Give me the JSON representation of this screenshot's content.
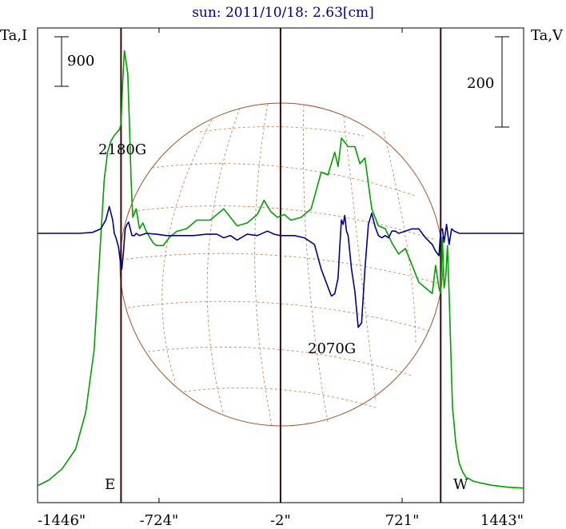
{
  "chart_data": {
    "type": "line",
    "title": "sun: 2011/10/18: 2.63[cm]",
    "left_axis_label": "Ta,I",
    "right_axis_label": "Ta,V",
    "x_tick_labels": [
      "-1446\"",
      "-724\"",
      "-2\"",
      "721\"",
      "1443\""
    ],
    "x_tick_values": [
      -1446,
      -724,
      -2,
      721,
      1443
    ],
    "xlim": [
      -1446,
      1443
    ],
    "scale_bars": [
      {
        "label": "900",
        "axis": "I"
      },
      {
        "label": "200",
        "axis": "V"
      }
    ],
    "limb_labels": [
      {
        "label": "E",
        "x": -950
      },
      {
        "label": "W",
        "x": 950
      }
    ],
    "annotations": [
      {
        "label": "2180G",
        "x": -1050
      },
      {
        "label": "2070G",
        "x": 450
      }
    ],
    "vertical_lines_x": [
      -950,
      -2,
      950
    ],
    "ylim_I": [
      0,
      1640
    ],
    "ylim_V": [
      -250,
      130
    ],
    "series": [
      {
        "key": "I",
        "color": "#00a000",
        "x": [
          -1446,
          -1380,
          -1300,
          -1220,
          -1160,
          -1110,
          -1080,
          -1060,
          -1050,
          -1040,
          -1030,
          -1010,
          -990,
          -975,
          -960,
          -950,
          -940,
          -930,
          -920,
          -910,
          -900,
          -890,
          -880,
          -860,
          -840,
          -820,
          -800,
          -780,
          -760,
          -740,
          -700,
          -660,
          -620,
          -560,
          -500,
          -420,
          -340,
          -260,
          -200,
          -140,
          -100,
          -60,
          -20,
          20,
          60,
          120,
          180,
          240,
          280,
          320,
          340,
          360,
          400,
          440,
          470,
          500,
          540,
          580,
          620,
          660,
          700,
          740,
          780,
          820,
          860,
          880,
          900,
          920,
          940,
          950,
          960,
          970,
          980,
          990,
          1000,
          1010,
          1020,
          1040,
          1060,
          1080,
          1100,
          1150,
          1250,
          1350,
          1443
        ],
        "values": [
          20,
          40,
          80,
          150,
          280,
          500,
          800,
          1000,
          1100,
          1150,
          1200,
          1240,
          1260,
          1270,
          1280,
          1300,
          1450,
          1560,
          1520,
          1480,
          1300,
          1100,
          970,
          1000,
          930,
          950,
          920,
          900,
          880,
          870,
          870,
          900,
          920,
          930,
          960,
          960,
          1000,
          940,
          950,
          980,
          1030,
          990,
          970,
          980,
          960,
          970,
          1000,
          1130,
          1120,
          1200,
          1150,
          1250,
          1220,
          1220,
          1160,
          1180,
          1000,
          940,
          930,
          880,
          840,
          860,
          800,
          740,
          720,
          710,
          700,
          800,
          720,
          700,
          900,
          720,
          760,
          870,
          700,
          500,
          300,
          170,
          100,
          70,
          50,
          35,
          22,
          15,
          12
        ]
      },
      {
        "key": "V",
        "color": "#000090",
        "x": [
          -1446,
          -1300,
          -1200,
          -1120,
          -1070,
          -1040,
          -1020,
          -1000,
          -990,
          -980,
          -965,
          -955,
          -945,
          -935,
          -925,
          -915,
          -905,
          -895,
          -885,
          -880,
          -870,
          -860,
          -840,
          -800,
          -740,
          -680,
          -600,
          -520,
          -440,
          -380,
          -340,
          -300,
          -260,
          -200,
          -140,
          -80,
          -40,
          -2,
          40,
          80,
          140,
          200,
          240,
          280,
          300,
          320,
          340,
          350,
          360,
          370,
          380,
          390,
          400,
          420,
          440,
          460,
          480,
          500,
          520,
          540,
          560,
          580,
          600,
          620,
          640,
          660,
          680,
          700,
          740,
          780,
          820,
          860,
          900,
          920,
          940,
          950,
          960,
          970,
          985,
          1000,
          1015,
          1030,
          1060,
          1100,
          1200,
          1300,
          1443
        ],
        "values": [
          0,
          0,
          0,
          2,
          10,
          30,
          60,
          30,
          0,
          -10,
          -30,
          -60,
          -80,
          -40,
          10,
          20,
          25,
          10,
          -5,
          -5,
          -5,
          0,
          -5,
          0,
          -2,
          -5,
          -5,
          -5,
          -2,
          -2,
          -10,
          -5,
          -15,
          -2,
          -5,
          5,
          -2,
          -5,
          -5,
          -5,
          -10,
          -25,
          -80,
          -120,
          -140,
          -135,
          -100,
          -30,
          30,
          20,
          40,
          5,
          -5,
          -80,
          -130,
          -210,
          -200,
          -80,
          20,
          45,
          15,
          -5,
          -10,
          -5,
          -10,
          5,
          5,
          0,
          5,
          10,
          10,
          -10,
          -25,
          -40,
          -50,
          5,
          10,
          -20,
          20,
          -25,
          10,
          5,
          0,
          0,
          0,
          0,
          0
        ]
      }
    ]
  }
}
